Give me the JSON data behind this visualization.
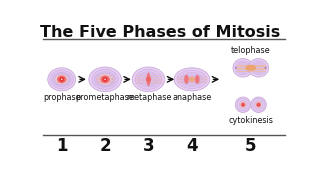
{
  "title": "The Five Phases of Mitosis",
  "title_fontsize": 11.5,
  "title_fontweight": "bold",
  "bg_color": "#ffffff",
  "phases": [
    "prophase",
    "prometaphase",
    "metaphase",
    "anaphase"
  ],
  "phase5_top": "telophase",
  "phase5_bot": "cytokinesis",
  "numbers": [
    "1",
    "2",
    "3",
    "4",
    "5"
  ],
  "cell_outer": "#e8d0f5",
  "cell_mid1": "#dfc4f0",
  "cell_mid2": "#d4b8eb",
  "nucleus_fill": "#f0c8c8",
  "core1": "#f06060",
  "core2": "#e83030",
  "spindle_color": "#e8b0b0",
  "edge_color": "#c8a8d8",
  "arrow_color": "#111111",
  "text_color": "#111111",
  "label_fontsize": 5.8,
  "number_fontsize": 12,
  "line_color": "#555555"
}
